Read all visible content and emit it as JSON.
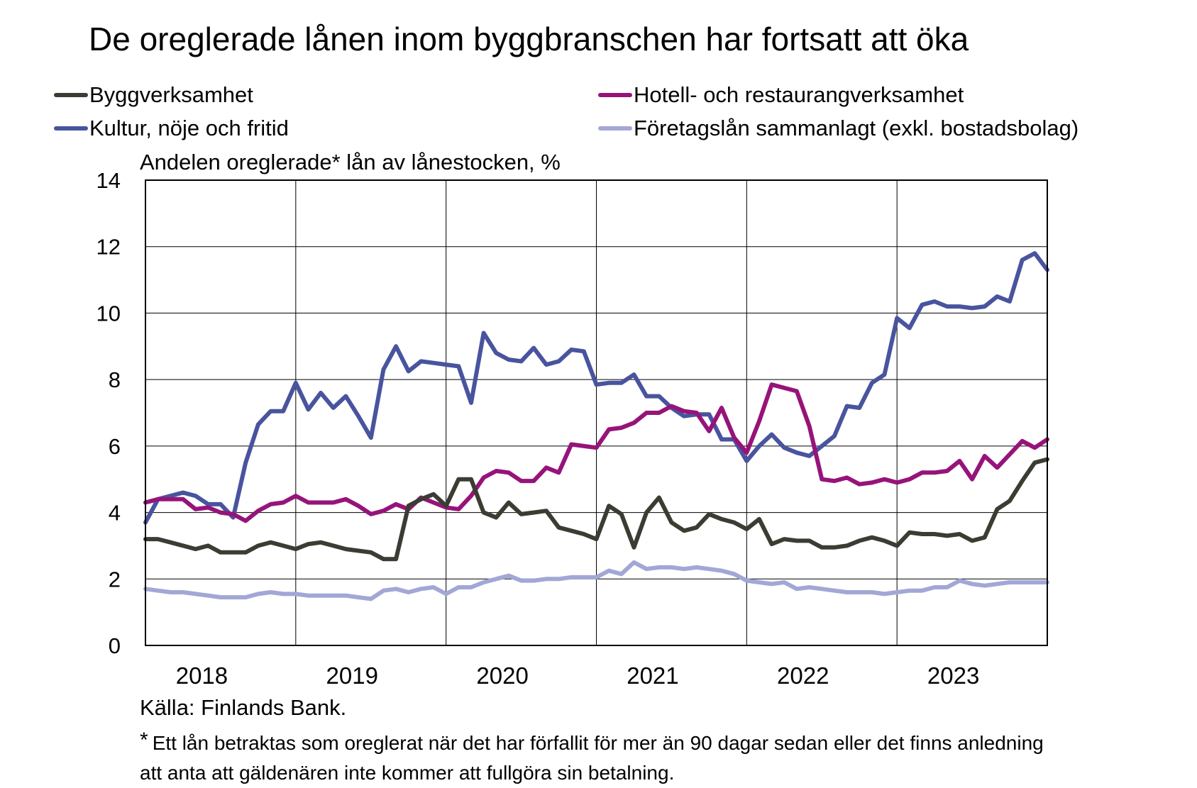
{
  "title": "De oreglerade lånen inom byggbranschen har fortsatt att öka",
  "source": "Källa: Finlands Bank.",
  "note_marker": "*",
  "note": "Ett lån betraktas som oreglerat när det har förfallit för mer än 90 dagar sedan eller det finns anledning att anta att gäldenären inte kommer att fullgöra sin betalning.",
  "chart_data": {
    "type": "line",
    "ylabel": "Andelen oreglerade* lån av lånestocken, %",
    "ylim": [
      0,
      14
    ],
    "yticks": [
      0,
      2,
      4,
      6,
      8,
      10,
      12,
      14
    ],
    "xlim": [
      0,
      72
    ],
    "year_labels": [
      "2018",
      "2019",
      "2020",
      "2021",
      "2022",
      "2023"
    ],
    "grid": true,
    "legend_position": "top",
    "series": [
      {
        "name": "Byggverksamhet",
        "color": "#3a3d32",
        "start": 0,
        "values": [
          3.2,
          3.2,
          3.1,
          3.0,
          2.9,
          3.0,
          2.8,
          2.8,
          2.8,
          3.0,
          3.1,
          3.0,
          2.9,
          3.05,
          3.1,
          3.0,
          2.9,
          2.85,
          2.8,
          2.6,
          2.6,
          4.2,
          4.4,
          4.55,
          4.2,
          5.0,
          5.0,
          4.0,
          3.85,
          4.3,
          3.95,
          4.0,
          4.05,
          3.55,
          3.45,
          3.35,
          3.2,
          4.2,
          3.95,
          2.95,
          4.0,
          4.45,
          3.7,
          3.45,
          3.55,
          3.95,
          3.8,
          3.7,
          3.5,
          3.8,
          3.05,
          3.2,
          3.15,
          3.15,
          2.95,
          2.95,
          3.0,
          3.15,
          3.25,
          3.15,
          3.0,
          3.4,
          3.35,
          3.35,
          3.3,
          3.35,
          3.15,
          3.25,
          4.1,
          4.35,
          4.95,
          5.5,
          5.6
        ]
      },
      {
        "name": "Hotell- och restaurangverksamhet",
        "color": "#96147a",
        "start": 0,
        "values": [
          4.3,
          4.4,
          4.4,
          4.4,
          4.1,
          4.15,
          4.0,
          3.95,
          3.75,
          4.05,
          4.25,
          4.3,
          4.5,
          4.3,
          4.3,
          4.3,
          4.4,
          4.2,
          3.95,
          4.05,
          4.25,
          4.1,
          4.45,
          4.3,
          4.15,
          4.1,
          4.5,
          5.05,
          5.25,
          5.2,
          4.95,
          4.95,
          5.35,
          5.2,
          6.05,
          6.0,
          5.95,
          6.5,
          6.55,
          6.7,
          7.0,
          7.0,
          7.2,
          7.05,
          7.0,
          6.45,
          7.15,
          6.25,
          5.8,
          6.75,
          7.85,
          7.75,
          7.65,
          6.6,
          5.0,
          4.95,
          5.05,
          4.85,
          4.9,
          5.0,
          4.9,
          5.0,
          5.2,
          5.2,
          5.25,
          5.55,
          5.0,
          5.7,
          5.35,
          5.75,
          6.15,
          5.95,
          6.2
        ]
      },
      {
        "name": "Kultur, nöje och fritid",
        "color": "#48549e",
        "start": 0,
        "values": [
          3.7,
          4.4,
          4.5,
          4.6,
          4.5,
          4.25,
          4.25,
          3.85,
          5.5,
          6.65,
          7.05,
          7.05,
          7.9,
          7.1,
          7.6,
          7.15,
          7.5,
          6.9,
          6.25,
          8.3,
          9.0,
          8.25,
          8.55,
          8.5,
          8.45,
          8.4,
          7.3,
          9.4,
          8.8,
          8.6,
          8.55,
          8.95,
          8.45,
          8.55,
          8.9,
          8.85,
          7.85,
          7.9,
          7.9,
          8.15,
          7.5,
          7.5,
          7.15,
          6.9,
          6.95,
          6.95,
          6.2,
          6.2,
          5.55,
          6.0,
          6.35,
          5.95,
          5.8,
          5.7,
          6.0,
          6.3,
          7.2,
          7.15,
          7.9,
          8.15,
          9.85,
          9.55,
          10.25,
          10.35,
          10.2,
          10.2,
          10.15,
          10.2,
          10.5,
          10.35,
          11.6,
          11.8,
          11.3
        ]
      },
      {
        "name": "Företagslån sammanlagt (exkl. bostadsbolag)",
        "color": "#a3a7d6",
        "start": 0,
        "values": [
          1.7,
          1.65,
          1.6,
          1.6,
          1.55,
          1.5,
          1.45,
          1.45,
          1.45,
          1.55,
          1.6,
          1.55,
          1.55,
          1.5,
          1.5,
          1.5,
          1.5,
          1.45,
          1.4,
          1.65,
          1.7,
          1.6,
          1.7,
          1.75,
          1.55,
          1.75,
          1.75,
          1.9,
          2.0,
          2.1,
          1.95,
          1.95,
          2.0,
          2.0,
          2.05,
          2.05,
          2.05,
          2.25,
          2.15,
          2.5,
          2.3,
          2.35,
          2.35,
          2.3,
          2.35,
          2.3,
          2.25,
          2.15,
          1.95,
          1.9,
          1.85,
          1.9,
          1.7,
          1.75,
          1.7,
          1.65,
          1.6,
          1.6,
          1.6,
          1.55,
          1.6,
          1.65,
          1.65,
          1.75,
          1.75,
          1.95,
          1.85,
          1.8,
          1.85,
          1.9,
          1.9,
          1.9,
          1.9
        ]
      }
    ]
  }
}
